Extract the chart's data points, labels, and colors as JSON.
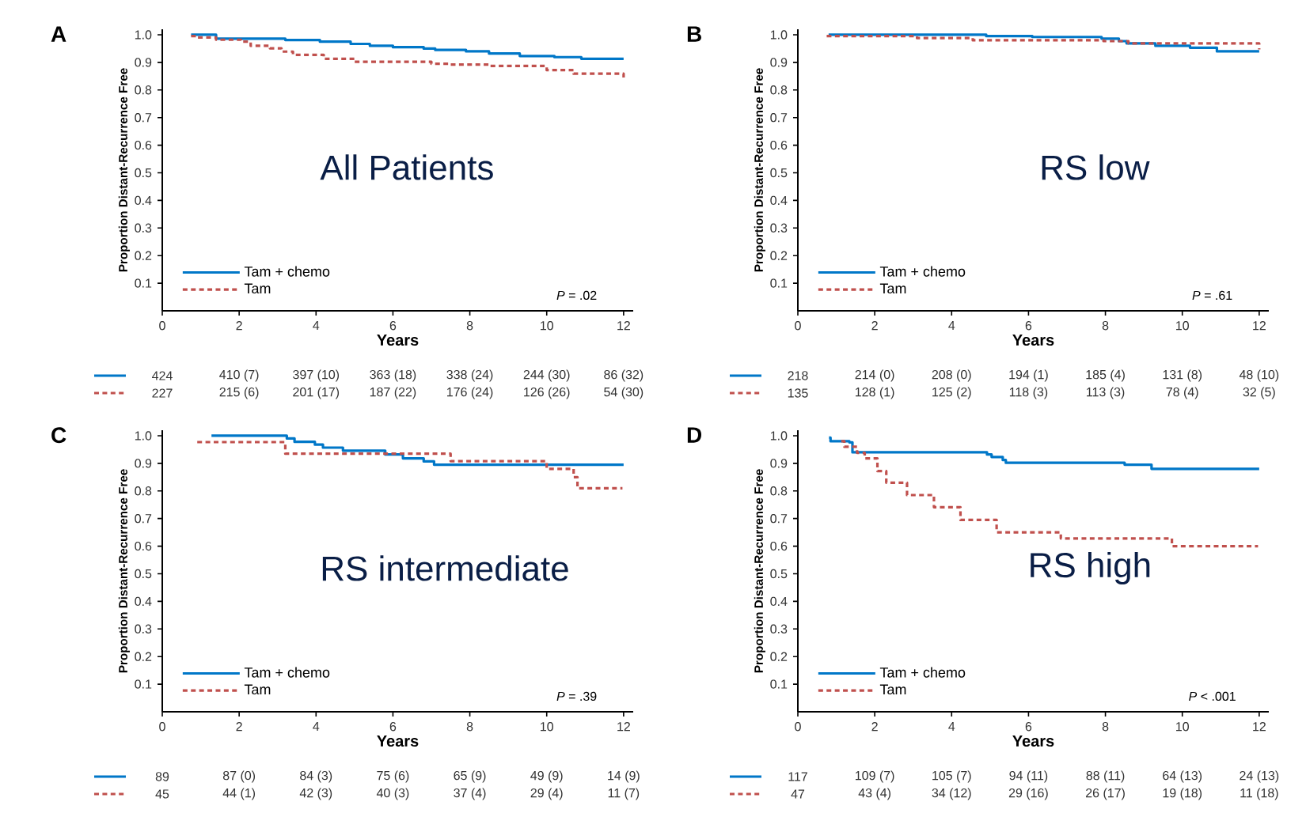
{
  "chart_data": [
    {
      "type": "step",
      "title": "A",
      "subtitle": "All Patients",
      "xlabel": "Years",
      "ylabel": "Proportion Distant-Recurrence Free",
      "xlim": [
        0,
        12.25
      ],
      "ylim": [
        0,
        1.02
      ],
      "xticks": [
        0,
        2,
        4,
        6,
        8,
        10,
        12
      ],
      "yticks": [
        {
          "value": 0.1,
          "label": "0.1"
        },
        {
          "value": 0.2,
          "label": "0.2"
        },
        {
          "value": 0.3,
          "label": "0.3"
        },
        {
          "value": 0.4,
          "label": "0.4"
        },
        {
          "value": 0.5,
          "label": "0.5"
        },
        {
          "value": 0.6,
          "label": "0.6"
        },
        {
          "value": 0.7,
          "label": "0.7"
        },
        {
          "value": 0.8,
          "label": "0.8"
        },
        {
          "value": 0.9,
          "label": "0.9"
        },
        {
          "value": 1.0,
          "label": "1.0"
        }
      ],
      "legend": "bottom left",
      "series": [
        {
          "name": "Tam + chemo",
          "color": "#0077c8",
          "line_style": "solid",
          "x": [
            0.75,
            1.4,
            3.2,
            4.1,
            4.9,
            5.4,
            6.0,
            6.8,
            7.1,
            7.9,
            8.5,
            9.3,
            10.2,
            10.9,
            12.0
          ],
          "values": [
            1.0,
            0.986,
            0.981,
            0.975,
            0.967,
            0.96,
            0.955,
            0.95,
            0.945,
            0.94,
            0.932,
            0.923,
            0.919,
            0.913,
            0.913
          ]
        },
        {
          "name": "Tam",
          "color": "#c0504d",
          "line_style": "dashed",
          "x": [
            0.75,
            0.9,
            1.4,
            2.05,
            2.3,
            2.8,
            3.1,
            3.4,
            4.2,
            5.0,
            7.0,
            7.5,
            8.5,
            10.0,
            10.7,
            12.0,
            12.0
          ],
          "values": [
            0.995,
            0.99,
            0.982,
            0.975,
            0.96,
            0.951,
            0.939,
            0.927,
            0.913,
            0.902,
            0.895,
            0.892,
            0.887,
            0.872,
            0.859,
            0.859,
            0.84
          ]
        }
      ],
      "annotations": [
        "*P* = .02",
        "424",
        "410 (7)",
        "397 (10)",
        "363 (18)",
        "338 (24)",
        "244 (30)",
        "86 (32)",
        "227",
        "215 (6)",
        "201 (17)",
        "187 (22)",
        "176 (24)",
        "126 (26)",
        "54 (30)"
      ]
    },
    {
      "type": "step",
      "title": "B",
      "subtitle": "RS low",
      "xlabel": "Years",
      "ylabel": "Proportion Distant-Recurrence Free",
      "xlim": [
        0,
        12.25
      ],
      "ylim": [
        0,
        1.02
      ],
      "xticks": [
        0,
        2,
        4,
        6,
        8,
        10,
        12
      ],
      "yticks": [
        {
          "value": 0.1,
          "label": "0.1"
        },
        {
          "value": 0.2,
          "label": "0.2"
        },
        {
          "value": 0.3,
          "label": "0.3"
        },
        {
          "value": 0.4,
          "label": "0.4"
        },
        {
          "value": 0.5,
          "label": "0.5"
        },
        {
          "value": 0.6,
          "label": "0.6"
        },
        {
          "value": 0.7,
          "label": "0.7"
        },
        {
          "value": 0.8,
          "label": "0.8"
        },
        {
          "value": 0.9,
          "label": "0.9"
        },
        {
          "value": 1.0,
          "label": "1.0"
        }
      ],
      "legend": "bottom left",
      "series": [
        {
          "name": "Tam + chemo",
          "color": "#0077c8",
          "line_style": "solid",
          "x": [
            0.8,
            4.9,
            6.1,
            7.9,
            8.35,
            8.55,
            9.3,
            10.2,
            10.9,
            12.0
          ],
          "values": [
            1.0,
            0.995,
            0.992,
            0.986,
            0.977,
            0.969,
            0.96,
            0.953,
            0.94,
            0.94
          ]
        },
        {
          "name": "Tam",
          "color": "#c0504d",
          "line_style": "dashed",
          "x": [
            0.75,
            3.1,
            4.55,
            7.95,
            8.6,
            12.0,
            12.0
          ],
          "values": [
            0.995,
            0.988,
            0.98,
            0.977,
            0.969,
            0.969,
            0.947
          ]
        }
      ],
      "annotations": [
        "*P* = .61",
        "218",
        "214 (0)",
        "208 (0)",
        "194 (1)",
        "185 (4)",
        "131 (8)",
        "48 (10)",
        "135",
        "128 (1)",
        "125 (2)",
        "118 (3)",
        "113 (3)",
        "78 (4)",
        "32 (5)"
      ]
    },
    {
      "type": "step",
      "title": "C",
      "subtitle": "RS intermediate",
      "xlabel": "Years",
      "ylabel": "Proportion Distant-Recurrence Free",
      "xlim": [
        0,
        12.25
      ],
      "ylim": [
        0,
        1.02
      ],
      "xticks": [
        0,
        2,
        4,
        6,
        8,
        10,
        12
      ],
      "yticks": [
        {
          "value": 0.1,
          "label": "0.1"
        },
        {
          "value": 0.2,
          "label": "0.2"
        },
        {
          "value": 0.3,
          "label": "0.3"
        },
        {
          "value": 0.4,
          "label": "0.4"
        },
        {
          "value": 0.5,
          "label": "0.5"
        },
        {
          "value": 0.6,
          "label": "0.6"
        },
        {
          "value": 0.7,
          "label": "0.7"
        },
        {
          "value": 0.8,
          "label": "0.8"
        },
        {
          "value": 0.9,
          "label": "0.9"
        },
        {
          "value": 1.0,
          "label": "1.0"
        }
      ],
      "legend": "bottom left",
      "series": [
        {
          "name": "Tam + chemo",
          "color": "#0077c8",
          "line_style": "solid",
          "x": [
            1.28,
            3.24,
            3.44,
            3.97,
            4.18,
            4.7,
            5.8,
            6.26,
            6.8,
            7.07,
            12.0
          ],
          "values": [
            1.0,
            0.99,
            0.978,
            0.968,
            0.957,
            0.946,
            0.932,
            0.918,
            0.907,
            0.895,
            0.895
          ]
        },
        {
          "name": "Tam",
          "color": "#c0504d",
          "line_style": "dashed",
          "x": [
            0.91,
            3.2,
            7.5,
            10.0,
            10.7,
            10.8,
            11.97
          ],
          "values": [
            0.977,
            0.935,
            0.908,
            0.88,
            0.85,
            0.81,
            0.81
          ]
        }
      ],
      "annotations": [
        "*P* = .39",
        "89",
        "87 (0)",
        "84 (3)",
        "75 (6)",
        "65 (9)",
        "49 (9)",
        "14 (9)",
        "45",
        "44 (1)",
        "42 (3)",
        "40 (3)",
        "37 (4)",
        "29 (4)",
        "11 (7)"
      ]
    },
    {
      "type": "step",
      "title": "D",
      "subtitle": "RS high",
      "xlabel": "Years",
      "ylabel": "Proportion Distant-Recurrence Free",
      "xlim": [
        0,
        12.25
      ],
      "ylim": [
        0,
        1.02
      ],
      "xticks": [
        0,
        2,
        4,
        6,
        8,
        10,
        12
      ],
      "yticks": [
        {
          "value": 0.1,
          "label": "0.1"
        },
        {
          "value": 0.2,
          "label": "0.2"
        },
        {
          "value": 0.3,
          "label": "0.3"
        },
        {
          "value": 0.4,
          "label": "0.4"
        },
        {
          "value": 0.5,
          "label": "0.5"
        },
        {
          "value": 0.6,
          "label": "0.6"
        },
        {
          "value": 0.7,
          "label": "0.7"
        },
        {
          "value": 0.8,
          "label": "0.8"
        },
        {
          "value": 0.9,
          "label": "0.9"
        },
        {
          "value": 1.0,
          "label": "1.0"
        }
      ],
      "legend": "bottom left",
      "series": [
        {
          "name": "Tam + chemo",
          "color": "#0077c8",
          "line_style": "solid",
          "x": [
            0.81,
            0.85,
            1.34,
            1.42,
            4.92,
            5.04,
            5.33,
            5.41,
            8.5,
            9.2,
            12.0
          ],
          "values": [
            0.993,
            0.98,
            0.976,
            0.94,
            0.932,
            0.923,
            0.912,
            0.902,
            0.895,
            0.88,
            0.88
          ]
        },
        {
          "name": "Tam",
          "color": "#c0504d",
          "line_style": "dashed",
          "x": [
            1.13,
            1.21,
            1.54,
            1.74,
            2.07,
            2.3,
            2.84,
            3.54,
            4.23,
            5.17,
            6.84,
            9.73,
            11.97
          ],
          "values": [
            0.98,
            0.96,
            0.938,
            0.918,
            0.872,
            0.83,
            0.785,
            0.741,
            0.695,
            0.65,
            0.628,
            0.6,
            0.6
          ]
        }
      ],
      "annotations": [
        "*P* < .001",
        "117",
        "109 (7)",
        "105 (7)",
        "94 (11)",
        "88 (11)",
        "64 (13)",
        "24 (13)",
        "47",
        "43 (4)",
        "34 (12)",
        "29 (16)",
        "26 (17)",
        "19 (18)",
        "11 (18)"
      ]
    }
  ]
}
